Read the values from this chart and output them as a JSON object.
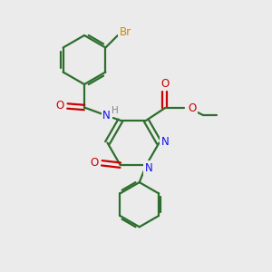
{
  "background_color": "#ebebeb",
  "bond_color": "#2d6e2d",
  "nitrogen_color": "#1010ee",
  "oxygen_color": "#cc0000",
  "bromine_color": "#cc8800",
  "hydrogen_color": "#888888",
  "line_width": 1.6,
  "figsize": [
    3.0,
    3.0
  ],
  "dpi": 100,
  "xlim": [
    0,
    10
  ],
  "ylim": [
    0,
    10
  ]
}
